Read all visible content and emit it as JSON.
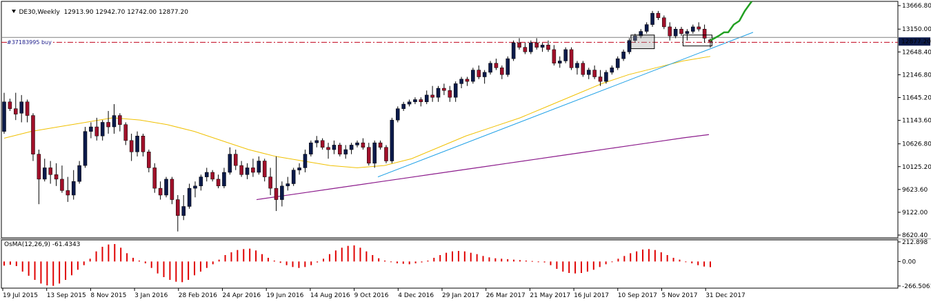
{
  "header": {
    "symbol_tf": "DE30,Weekly",
    "ohlc": "12913.90 12942.70 12742.00 12877.20"
  },
  "order_label": "#37183995 buy",
  "oscillator": {
    "label": "OsMA(12,26,9) -61.4343",
    "axis_ticks": [
      "212.898",
      "0.00",
      "-266.5061"
    ],
    "axis_values": [
      212.898,
      0,
      -266.5061
    ],
    "bar_color": "#e00000"
  },
  "price_axis": {
    "ticks": [
      "13666.80",
      "13150.00",
      "12648.40",
      "12146.80",
      "11645.20",
      "11143.60",
      "10626.80",
      "10125.20",
      "9623.60",
      "9122.00",
      "8620.40"
    ],
    "tick_values": [
      13666.8,
      13150.0,
      12648.4,
      12146.8,
      11645.2,
      11143.6,
      10626.8,
      10125.2,
      9623.6,
      9122.0,
      8620.4
    ],
    "current_price": "12877.20",
    "current_price_value": 12877.2,
    "order_price_value": 12860
  },
  "date_axis": {
    "labels": [
      "19 Jul 2015",
      "13 Sep 2015",
      "8 Nov 2015",
      "3 Jan 2016",
      "28 Feb 2016",
      "24 Apr 2016",
      "19 Jun 2016",
      "14 Aug 2016",
      "9 Oct 2016",
      "4 Dec 2016",
      "29 Jan 2017",
      "26 Mar 2017",
      "21 May 2017",
      "16 Jul 2017",
      "10 Sep 2017",
      "5 Nov 2017",
      "31 Dec 2017"
    ]
  },
  "colors": {
    "bull_body": "#0b1a4a",
    "bear_body": "#a0102a",
    "wick": "#000000",
    "ma_short": "#f0c000",
    "ma_long": "#8b1a8b",
    "trendline": "#1ea0e6",
    "forecast": "#22a022",
    "order_line": "#c0001a",
    "price_badge_bg": "#0b1a4a",
    "price_badge_fg": "#ffffff"
  },
  "chart_data": {
    "type": "candlestick",
    "timeframe": "weekly",
    "ohlc": [
      [
        10900,
        11750,
        10850,
        11550
      ],
      [
        11550,
        11620,
        11350,
        11400
      ],
      [
        11400,
        11750,
        11150,
        11280
      ],
      [
        11300,
        11700,
        11100,
        11550
      ],
      [
        11550,
        11600,
        11100,
        11250
      ],
      [
        11250,
        11300,
        10250,
        10400
      ],
      [
        10400,
        10500,
        9300,
        9850
      ],
      [
        9850,
        10300,
        9800,
        10100
      ],
      [
        10100,
        10250,
        9750,
        9950
      ],
      [
        9950,
        10200,
        9700,
        9850
      ],
      [
        9850,
        10150,
        9550,
        9600
      ],
      [
        9600,
        9900,
        9350,
        9500
      ],
      [
        9500,
        10050,
        9400,
        9800
      ],
      [
        9800,
        10250,
        9750,
        10150
      ],
      [
        10150,
        11000,
        10100,
        10900
      ],
      [
        10900,
        11100,
        10750,
        11000
      ],
      [
        11000,
        11200,
        10700,
        10800
      ],
      [
        10800,
        11150,
        10700,
        11100
      ],
      [
        11100,
        11350,
        10850,
        11000
      ],
      [
        11000,
        11500,
        10850,
        11250
      ],
      [
        11250,
        11300,
        10900,
        11050
      ],
      [
        11050,
        11100,
        10600,
        10700
      ],
      [
        10700,
        10850,
        10250,
        10450
      ],
      [
        10450,
        10900,
        10350,
        10800
      ],
      [
        10800,
        10850,
        10350,
        10450
      ],
      [
        10450,
        10500,
        10000,
        10100
      ],
      [
        10100,
        10200,
        9550,
        9650
      ],
      [
        9650,
        9800,
        9400,
        9500
      ],
      [
        9500,
        9900,
        9450,
        9850
      ],
      [
        9850,
        9900,
        9300,
        9400
      ],
      [
        9400,
        9500,
        8700,
        9050
      ],
      [
        9050,
        9500,
        8950,
        9250
      ],
      [
        9250,
        9750,
        9200,
        9650
      ],
      [
        9650,
        9800,
        9450,
        9700
      ],
      [
        9700,
        9950,
        9600,
        9900
      ],
      [
        9900,
        10100,
        9800,
        10000
      ],
      [
        10000,
        10050,
        9800,
        9850
      ],
      [
        9850,
        9950,
        9650,
        9700
      ],
      [
        9700,
        10100,
        9650,
        10000
      ],
      [
        10000,
        10550,
        9950,
        10400
      ],
      [
        10400,
        10500,
        10050,
        10150
      ],
      [
        10150,
        10250,
        9900,
        9950
      ],
      [
        9950,
        10200,
        9850,
        10100
      ],
      [
        10100,
        10300,
        9900,
        10000
      ],
      [
        10000,
        10350,
        9950,
        10250
      ],
      [
        10250,
        10300,
        9800,
        9900
      ],
      [
        9900,
        10100,
        9500,
        9650
      ],
      [
        9650,
        10350,
        9150,
        9400
      ],
      [
        9400,
        9800,
        9250,
        9700
      ],
      [
        9700,
        9900,
        9600,
        9750
      ],
      [
        9750,
        10100,
        9700,
        10050
      ],
      [
        10050,
        10200,
        9950,
        10100
      ],
      [
        10100,
        10500,
        10000,
        10400
      ],
      [
        10400,
        10700,
        10350,
        10650
      ],
      [
        10650,
        10800,
        10550,
        10700
      ],
      [
        10700,
        10750,
        10500,
        10550
      ],
      [
        10550,
        10650,
        10300,
        10500
      ],
      [
        10500,
        10700,
        10400,
        10600
      ],
      [
        10600,
        10650,
        10350,
        10400
      ],
      [
        10400,
        10600,
        10300,
        10500
      ],
      [
        10500,
        10650,
        10400,
        10600
      ],
      [
        10600,
        10700,
        10550,
        10650
      ],
      [
        10650,
        10750,
        10500,
        10550
      ],
      [
        10550,
        10650,
        10150,
        10200
      ],
      [
        10200,
        10700,
        10100,
        10650
      ],
      [
        10650,
        10700,
        10500,
        10550
      ],
      [
        10550,
        10600,
        10200,
        10250
      ],
      [
        10250,
        11200,
        10200,
        11150
      ],
      [
        11150,
        11450,
        11100,
        11400
      ],
      [
        11400,
        11550,
        11350,
        11500
      ],
      [
        11500,
        11600,
        11450,
        11550
      ],
      [
        11550,
        11650,
        11500,
        11600
      ],
      [
        11600,
        11650,
        11450,
        11550
      ],
      [
        11550,
        11800,
        11500,
        11700
      ],
      [
        11700,
        11900,
        11550,
        11650
      ],
      [
        11650,
        11900,
        11550,
        11850
      ],
      [
        11850,
        11950,
        11700,
        11800
      ],
      [
        11800,
        11900,
        11550,
        11650
      ],
      [
        11650,
        12000,
        11550,
        11950
      ],
      [
        11950,
        12100,
        11850,
        12050
      ],
      [
        12050,
        12100,
        11900,
        12000
      ],
      [
        12000,
        12300,
        11950,
        12250
      ],
      [
        12250,
        12350,
        12050,
        12100
      ],
      [
        12100,
        12250,
        11950,
        12200
      ],
      [
        12200,
        12450,
        12150,
        12400
      ],
      [
        12400,
        12500,
        12250,
        12300
      ],
      [
        12300,
        12350,
        12050,
        12150
      ],
      [
        12150,
        12550,
        12100,
        12500
      ],
      [
        12500,
        12900,
        12450,
        12850
      ],
      [
        12850,
        12950,
        12700,
        12750
      ],
      [
        12750,
        12850,
        12600,
        12650
      ],
      [
        12650,
        12900,
        12600,
        12850
      ],
      [
        12850,
        12950,
        12700,
        12750
      ],
      [
        12750,
        12850,
        12650,
        12800
      ],
      [
        12800,
        12900,
        12650,
        12700
      ],
      [
        12700,
        12800,
        12350,
        12400
      ],
      [
        12400,
        12550,
        12300,
        12450
      ],
      [
        12450,
        12750,
        12400,
        12700
      ],
      [
        12700,
        12750,
        12250,
        12300
      ],
      [
        12300,
        12450,
        12150,
        12400
      ],
      [
        12400,
        12450,
        12100,
        12150
      ],
      [
        12150,
        12300,
        12050,
        12250
      ],
      [
        12250,
        12350,
        12050,
        12100
      ],
      [
        12100,
        12250,
        11900,
        12000
      ],
      [
        12000,
        12250,
        11950,
        12200
      ],
      [
        12200,
        12350,
        12150,
        12300
      ],
      [
        12300,
        12550,
        12250,
        12500
      ],
      [
        12500,
        12700,
        12450,
        12650
      ],
      [
        12650,
        12950,
        12600,
        12900
      ],
      [
        12900,
        13050,
        12850,
        13000
      ],
      [
        13000,
        13150,
        12950,
        13100
      ],
      [
        13100,
        13300,
        13050,
        13250
      ],
      [
        13250,
        13550,
        13200,
        13500
      ],
      [
        13500,
        13550,
        13350,
        13400
      ],
      [
        13400,
        13450,
        13150,
        13200
      ],
      [
        13200,
        13300,
        12900,
        13000
      ],
      [
        13000,
        13200,
        12950,
        13150
      ],
      [
        13150,
        13200,
        13000,
        13050
      ],
      [
        13050,
        13150,
        12900,
        13100
      ],
      [
        13100,
        13250,
        13050,
        13200
      ],
      [
        13200,
        13300,
        13100,
        13150
      ],
      [
        13150,
        13250,
        12850,
        12950
      ],
      [
        12913.9,
        12942.7,
        12742.0,
        12877.2
      ]
    ],
    "ma_short_points": [
      10750,
      10900,
      11000,
      11100,
      11200,
      11150,
      11050,
      10900,
      10700,
      10500,
      10350,
      10250,
      10150,
      10100,
      10150,
      10300,
      10550,
      10800,
      11000,
      11200,
      11450,
      11700,
      11950,
      12150,
      12300,
      12450,
      12550
    ],
    "ma_long_points": [
      9400,
      9480,
      9560,
      9640,
      9720,
      9800,
      9880,
      9960,
      10040,
      10120,
      10200,
      10280,
      10360,
      10440,
      10520,
      10600,
      10680,
      10760,
      10830
    ],
    "oscillator_values": [
      -45,
      -35,
      -50,
      -110,
      -155,
      -200,
      -240,
      -260,
      -265,
      -240,
      -200,
      -150,
      -90,
      -40,
      30,
      110,
      160,
      185,
      190,
      150,
      90,
      40,
      10,
      -20,
      -70,
      -130,
      -170,
      -200,
      -220,
      -225,
      -200,
      -150,
      -110,
      -70,
      -30,
      20,
      70,
      100,
      125,
      135,
      140,
      120,
      80,
      40,
      10,
      -15,
      -40,
      -60,
      -70,
      -60,
      -40,
      -10,
      30,
      80,
      120,
      150,
      170,
      175,
      150,
      110,
      70,
      35,
      10,
      -5,
      -20,
      -25,
      -30,
      -20,
      -10,
      10,
      40,
      70,
      95,
      110,
      115,
      110,
      95,
      80,
      60,
      45,
      35,
      30,
      25,
      20,
      15,
      10,
      5,
      0,
      -10,
      -40,
      -80,
      -110,
      -125,
      -130,
      -125,
      -110,
      -90,
      -60,
      -30,
      0,
      30,
      60,
      90,
      110,
      130,
      135,
      125,
      100,
      70,
      40,
      20,
      0,
      -20,
      -40,
      -55,
      -61.4343
    ]
  }
}
